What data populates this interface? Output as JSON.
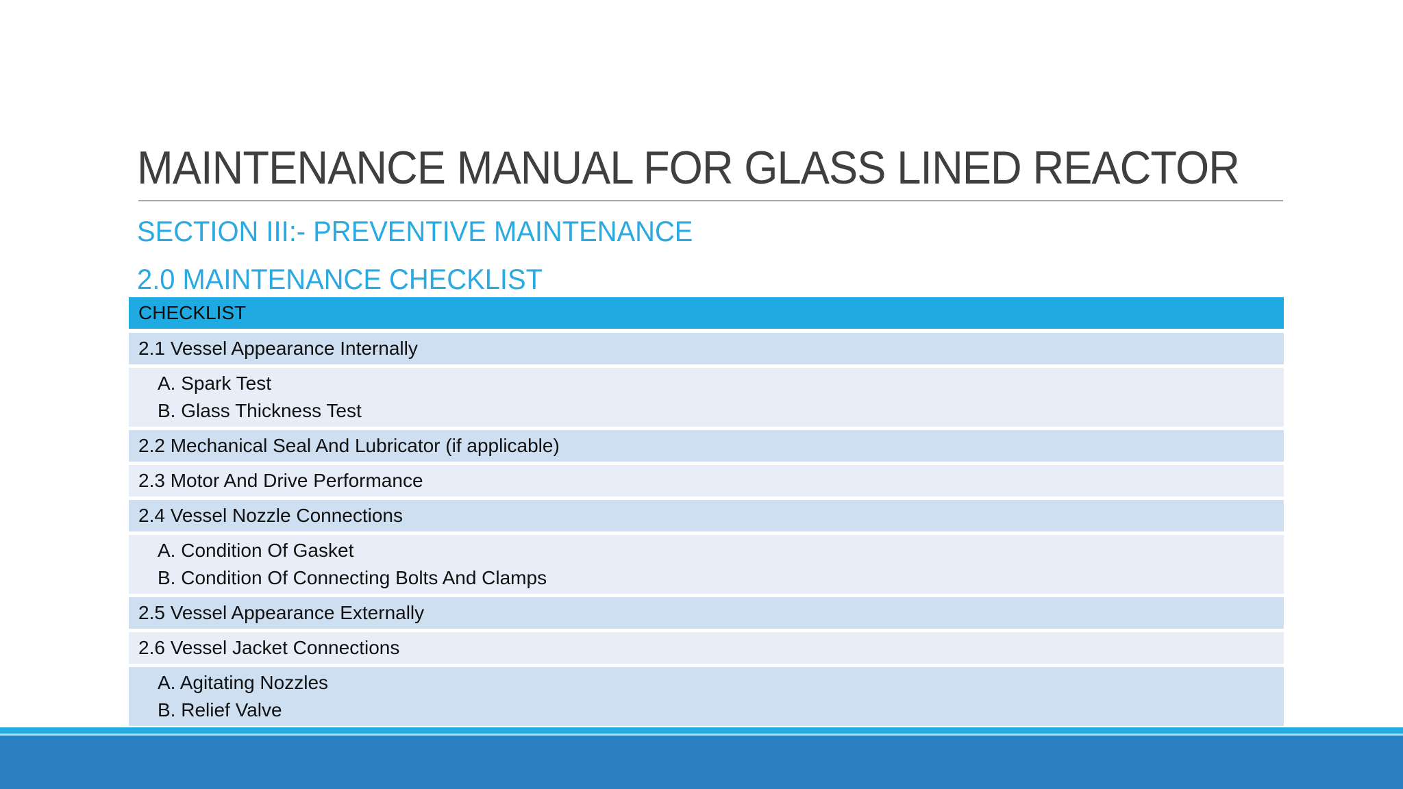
{
  "slide": {
    "title": "MAINTENANCE MANUAL FOR GLASS LINED REACTOR",
    "section_heading": "SECTION III:- PREVENTIVE MAINTENANCE",
    "subsection_heading": "2.0 MAINTENANCE CHECKLIST"
  },
  "checklist_table": {
    "header": "CHECKLIST",
    "rows": [
      {
        "type": "item",
        "band": "dark",
        "lines": [
          "2.1 Vessel Appearance Internally"
        ]
      },
      {
        "type": "subitems",
        "band": "light",
        "lines": [
          "A. Spark Test",
          "B. Glass Thickness Test"
        ]
      },
      {
        "type": "item",
        "band": "dark",
        "lines": [
          "2.2 Mechanical Seal And Lubricator (if applicable)"
        ]
      },
      {
        "type": "item",
        "band": "light",
        "lines": [
          "2.3 Motor And Drive Performance"
        ]
      },
      {
        "type": "item",
        "band": "dark",
        "lines": [
          "2.4 Vessel Nozzle Connections"
        ]
      },
      {
        "type": "subitems",
        "band": "light",
        "lines": [
          "A. Condition Of Gasket",
          "B. Condition Of Connecting Bolts And Clamps"
        ]
      },
      {
        "type": "item",
        "band": "dark",
        "lines": [
          "2.5 Vessel Appearance Externally"
        ]
      },
      {
        "type": "item",
        "band": "light",
        "lines": [
          "2.6 Vessel Jacket Connections"
        ]
      },
      {
        "type": "subitems",
        "band": "dark",
        "lines": [
          "A. Agitating Nozzles",
          "B. Relief Valve"
        ]
      }
    ]
  },
  "colors": {
    "title_text": "#3F3F3F",
    "divider": "#A6A6A6",
    "heading_text": "#2BA9E1",
    "table_header_bg": "#1FAAE2",
    "band_dark": "#CDDFF1",
    "band_light": "#E8EEF8",
    "body_text": "#111111",
    "footer_stripe": "#25AAE1",
    "footer_stripe_edge": "#B3DCF2",
    "footer_bar": "#2A80C1"
  }
}
